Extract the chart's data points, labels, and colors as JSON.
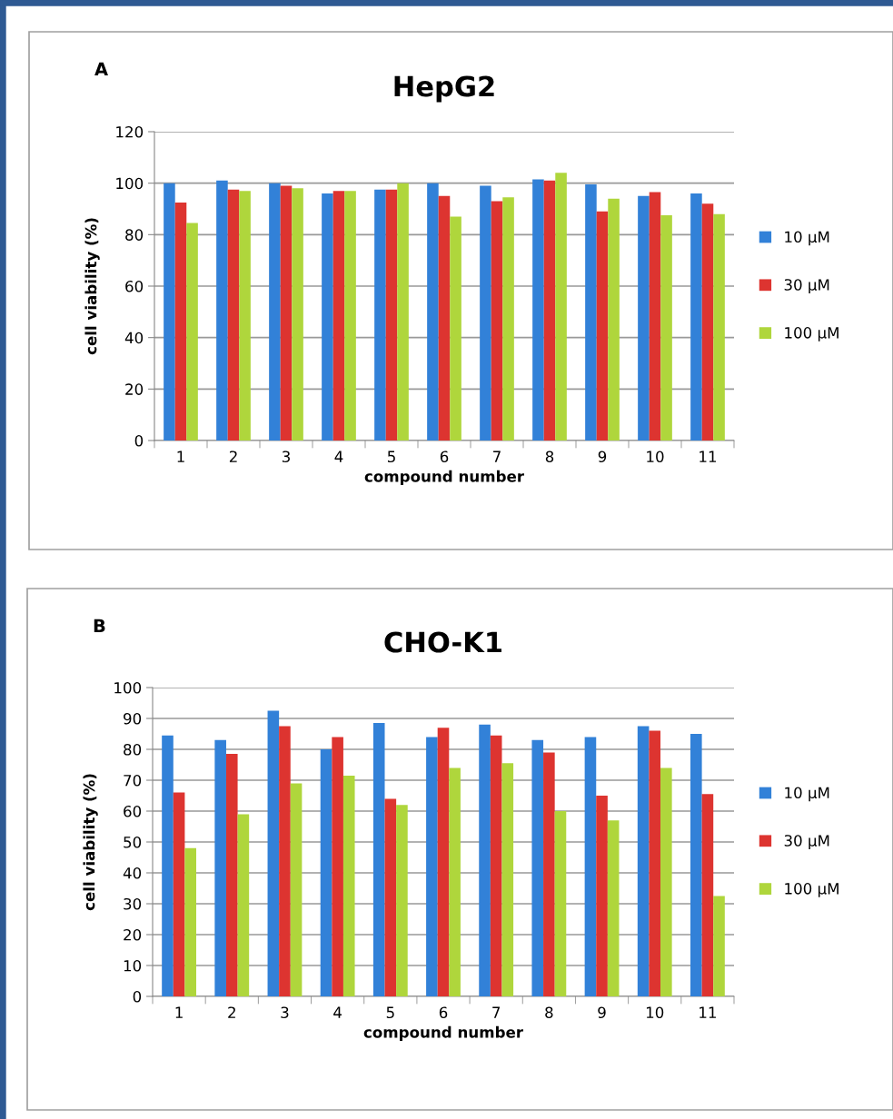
{
  "chart_data": [
    {
      "type": "bar",
      "title": "HepG2",
      "annotations": [
        "A"
      ],
      "xlabel": "compound number",
      "ylabel": "cell viability (%)",
      "categories": [
        "1",
        "2",
        "3",
        "4",
        "5",
        "6",
        "7",
        "8",
        "9",
        "10",
        "11"
      ],
      "series": [
        {
          "name": "10 µM",
          "color": "#3281d8",
          "values": [
            100,
            101,
            100,
            96,
            97.5,
            100,
            99,
            101.5,
            99.5,
            95,
            96
          ]
        },
        {
          "name": "30 µM",
          "color": "#dd3430",
          "values": [
            92.5,
            97.5,
            99,
            97,
            97.5,
            95,
            93,
            101,
            89,
            96.5,
            92
          ]
        },
        {
          "name": "100 µM",
          "color": "#afd63c",
          "values": [
            84.5,
            97,
            98,
            97,
            100,
            87,
            94.5,
            104,
            94,
            87.5,
            88
          ]
        }
      ],
      "ylim": [
        0,
        120
      ],
      "yticks": [
        0,
        20,
        40,
        60,
        80,
        100,
        120
      ],
      "grid": "y",
      "legend": "right"
    },
    {
      "type": "bar",
      "title": "CHO-K1",
      "annotations": [
        "B"
      ],
      "xlabel": "compound number",
      "ylabel": "cell viability (%)",
      "categories": [
        "1",
        "2",
        "3",
        "4",
        "5",
        "6",
        "7",
        "8",
        "9",
        "10",
        "11"
      ],
      "series": [
        {
          "name": "10 µM",
          "color": "#3281d8",
          "values": [
            84.5,
            83,
            92.5,
            80,
            88.5,
            84,
            88,
            83,
            84,
            87.5,
            85
          ]
        },
        {
          "name": "30 µM",
          "color": "#dd3430",
          "values": [
            66,
            78.5,
            87.5,
            84,
            64,
            87,
            84.5,
            79,
            65,
            86,
            65.5
          ]
        },
        {
          "name": "100 µM",
          "color": "#afd63c",
          "values": [
            48,
            59,
            69,
            71.5,
            62,
            74,
            75.5,
            60,
            57,
            74,
            32.5
          ]
        }
      ],
      "ylim": [
        0,
        100
      ],
      "yticks": [
        0,
        10,
        20,
        30,
        40,
        50,
        60,
        70,
        80,
        90,
        100
      ],
      "grid": "y",
      "legend": "right"
    }
  ]
}
